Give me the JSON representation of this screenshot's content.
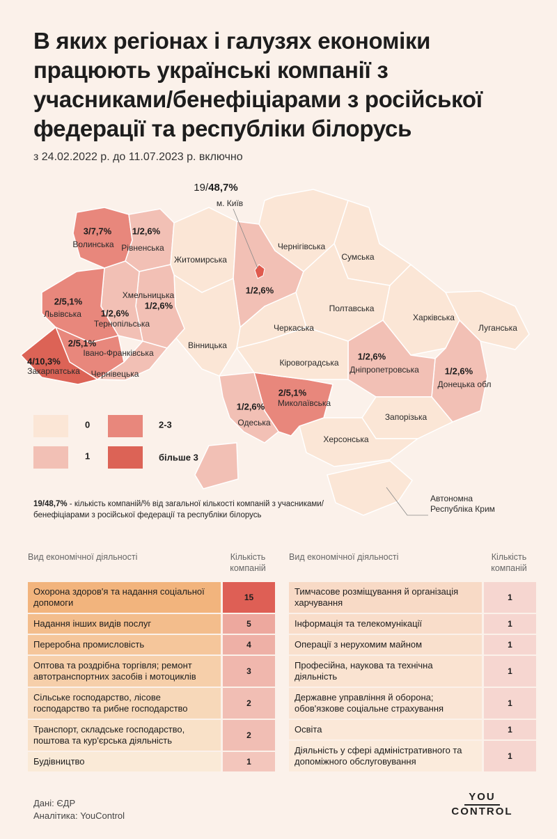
{
  "header": {
    "title_lines": [
      "В яких регіонах і галузях економіки",
      "працюють українські компанії з",
      "учасниками/бенефіціарами з російської",
      "федерації та республіки білорусь"
    ],
    "subtitle": "з 24.02.2022 р. до 11.07.2023 р. включно"
  },
  "map": {
    "kyiv_city": {
      "count_part": "19/",
      "share_part": "48,7%",
      "name": "м. Київ",
      "color": "#e05a4e"
    },
    "regions": [
      {
        "name": "Волинська",
        "label": "3/7,7%",
        "color": "#e8877c"
      },
      {
        "name": "Рівненська",
        "label": "1/2,6%",
        "color": "#f2c0b5"
      },
      {
        "name": "Житомирська",
        "color": "#fbe6d6"
      },
      {
        "label": "1/2,6%",
        "color": "#f2c0b5"
      },
      {
        "name": "Чернігівська",
        "color": "#fbe6d6"
      },
      {
        "name": "Сумська",
        "color": "#fbe6d6"
      },
      {
        "name": "Полтавська",
        "color": "#fbe6d6"
      },
      {
        "name": "Харківська",
        "color": "#fbe6d6"
      },
      {
        "name": "Луганська",
        "color": "#fbe6d6"
      },
      {
        "name": "Донецька обл",
        "label": "1/2,6%",
        "color": "#f2c0b5"
      },
      {
        "name": "Дніпропетровська",
        "label": "1/2,6%",
        "color": "#f2c0b5"
      },
      {
        "name": "Запорізька",
        "color": "#fbe6d6"
      },
      {
        "name": "Херсонська",
        "color": "#fbe6d6"
      },
      {
        "name": "Миколаївська",
        "label": "2/5,1%",
        "color": "#e8877c"
      },
      {
        "name": "Одеська",
        "label": "1/2,6%",
        "color": "#f2c0b5"
      },
      {
        "name": "Кіровоградська",
        "color": "#fbe6d6"
      },
      {
        "name": "Черкаська",
        "color": "#fbe6d6"
      },
      {
        "name": "Вінницька",
        "color": "#fbe6d6"
      },
      {
        "name": "Хмельницька",
        "label": "1/2,6%",
        "color": "#f2c0b5"
      },
      {
        "name": "Тернопільська",
        "label": "1/2,6%",
        "color": "#f2c0b5"
      },
      {
        "name": "Львівська",
        "label": "2/5,1%",
        "color": "#e8877c"
      },
      {
        "name": "Івано-Франківська",
        "label": "2/5,1%",
        "color": "#e8877c"
      },
      {
        "name": "Чернівецька",
        "color": "#f2c0b5"
      },
      {
        "name": "Закарпатська",
        "label": "4/10,3%",
        "color": "#dc6356"
      }
    ],
    "crimea": {
      "name_lines": [
        "Автономна",
        "Республіка Крим"
      ],
      "color": "#fbe6d6"
    },
    "legend": [
      {
        "label": "0",
        "color": "#fbe6d6"
      },
      {
        "label": "1",
        "color": "#f2c0b5"
      },
      {
        "label": "2-3",
        "color": "#e8877c"
      },
      {
        "label": "більше 3",
        "color": "#dc6356"
      }
    ],
    "note_parts": [
      "19/48,7%",
      " - кількість компаній/% від загальної кількості компаній з учасниками/бенефіціарами з російської федерації та республіки білорусь"
    ]
  },
  "tables": [
    {
      "columns": [
        "Вид економічної діяльності",
        "Кількість компаній"
      ],
      "rows": [
        [
          "Охорона здоров'я та надання соціальної допомоги",
          15
        ],
        [
          "Надання інших видів послуг",
          5
        ],
        [
          "Переробна промисловість",
          4
        ],
        [
          "Оптова та роздрібна торгівля; ремонт автотранспортних засобів і мотоциклів",
          3
        ],
        [
          "Сільське господарство, лісове господарство та рибне господарство",
          2
        ],
        [
          "Транспорт, складське господарство, поштова та кур'єрська діяльність",
          2
        ],
        [
          "Будівництво",
          1
        ]
      ]
    },
    {
      "columns": [
        "Вид економічної діяльності",
        "Кількість компаній"
      ],
      "rows": [
        [
          "Тимчасове розміщування й організація харчування",
          1
        ],
        [
          "Інформація та телекомунікації",
          1
        ],
        [
          "Операції з нерухомим майном",
          1
        ],
        [
          "Професійна, наукова та технічна діяльність",
          1
        ],
        [
          "Державне управління й оборона; обов'язкове соціальне страхування",
          1
        ],
        [
          "Освіта",
          1
        ],
        [
          "Діяльність у сфері адміністративного та допоміжного обслуговування",
          1
        ]
      ]
    }
  ],
  "footer": {
    "source": "Дані: ЄДР",
    "analytics": "Аналітика: YouControl",
    "logo_lines": [
      "YOU",
      "CONTROL"
    ]
  }
}
